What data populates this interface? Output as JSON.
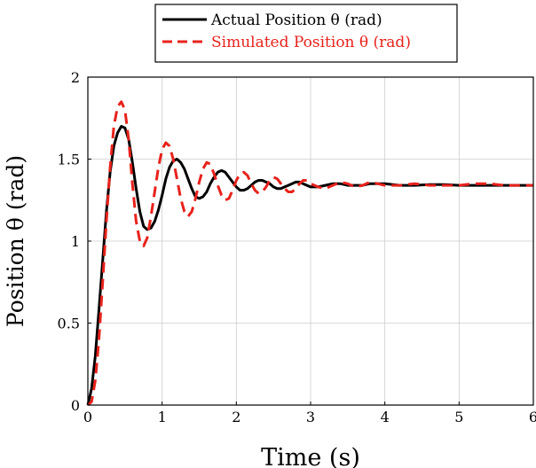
{
  "chart_data": {
    "type": "line",
    "xlabel": "Time (s)",
    "ylabel": "Position θ (rad)",
    "xlim": [
      0,
      6
    ],
    "ylim": [
      0,
      2
    ],
    "xticks": [
      "0",
      "1",
      "2",
      "3",
      "4",
      "5",
      "6"
    ],
    "yticks": [
      "0",
      "0.5",
      "1",
      "1.5",
      "2"
    ],
    "grid": true,
    "legend_position": "top-center",
    "series": [
      {
        "name": "Actual Position  θ (rad)",
        "color": "#000000",
        "style": "solid",
        "x": [
          0,
          0.05,
          0.1,
          0.15,
          0.2,
          0.25,
          0.3,
          0.35,
          0.4,
          0.45,
          0.5,
          0.55,
          0.6,
          0.65,
          0.7,
          0.75,
          0.8,
          0.85,
          0.9,
          0.95,
          1.0,
          1.05,
          1.1,
          1.15,
          1.2,
          1.25,
          1.3,
          1.35,
          1.4,
          1.45,
          1.5,
          1.55,
          1.6,
          1.65,
          1.7,
          1.75,
          1.8,
          1.85,
          1.9,
          1.95,
          2.0,
          2.05,
          2.1,
          2.15,
          2.2,
          2.25,
          2.3,
          2.35,
          2.4,
          2.45,
          2.5,
          2.55,
          2.6,
          2.65,
          2.7,
          2.75,
          2.8,
          2.85,
          2.9,
          2.95,
          3.0,
          3.1,
          3.2,
          3.3,
          3.4,
          3.5,
          3.6,
          3.7,
          3.8,
          3.9,
          4.0,
          4.2,
          4.4,
          4.6,
          4.8,
          5.0,
          5.2,
          5.4,
          5.6,
          5.8,
          6.0
        ],
        "y": [
          0,
          0.1,
          0.3,
          0.58,
          0.88,
          1.18,
          1.42,
          1.58,
          1.66,
          1.7,
          1.69,
          1.62,
          1.48,
          1.32,
          1.18,
          1.09,
          1.07,
          1.08,
          1.12,
          1.19,
          1.28,
          1.38,
          1.45,
          1.49,
          1.5,
          1.48,
          1.44,
          1.38,
          1.32,
          1.27,
          1.26,
          1.27,
          1.3,
          1.35,
          1.39,
          1.42,
          1.43,
          1.42,
          1.39,
          1.36,
          1.33,
          1.31,
          1.31,
          1.32,
          1.34,
          1.36,
          1.37,
          1.37,
          1.36,
          1.35,
          1.33,
          1.32,
          1.32,
          1.33,
          1.34,
          1.35,
          1.36,
          1.36,
          1.35,
          1.34,
          1.33,
          1.33,
          1.34,
          1.35,
          1.35,
          1.34,
          1.34,
          1.34,
          1.35,
          1.35,
          1.35,
          1.34,
          1.34,
          1.345,
          1.345,
          1.34,
          1.34,
          1.34,
          1.34,
          1.34,
          1.34
        ]
      },
      {
        "name": "Simulated Position  θ (rad)",
        "color": "#e8221c",
        "style": "dashed",
        "x": [
          0,
          0.05,
          0.1,
          0.15,
          0.2,
          0.25,
          0.3,
          0.35,
          0.4,
          0.45,
          0.5,
          0.55,
          0.6,
          0.65,
          0.7,
          0.75,
          0.8,
          0.85,
          0.9,
          0.95,
          1.0,
          1.05,
          1.1,
          1.15,
          1.2,
          1.25,
          1.3,
          1.35,
          1.4,
          1.45,
          1.5,
          1.55,
          1.6,
          1.65,
          1.7,
          1.75,
          1.8,
          1.85,
          1.9,
          1.95,
          2.0,
          2.05,
          2.1,
          2.15,
          2.2,
          2.25,
          2.3,
          2.35,
          2.4,
          2.45,
          2.5,
          2.55,
          2.6,
          2.65,
          2.7,
          2.75,
          2.8,
          2.85,
          2.9,
          2.95,
          3.0,
          3.1,
          3.2,
          3.3,
          3.4,
          3.5,
          3.6,
          3.7,
          3.8,
          3.9,
          4.0,
          4.2,
          4.4,
          4.6,
          4.8,
          5.0,
          5.2,
          5.4,
          5.6,
          5.8,
          6.0
        ],
        "y": [
          0,
          0.02,
          0.15,
          0.4,
          0.75,
          1.12,
          1.45,
          1.7,
          1.82,
          1.85,
          1.8,
          1.62,
          1.35,
          1.12,
          1.0,
          0.97,
          1.02,
          1.15,
          1.3,
          1.45,
          1.56,
          1.6,
          1.58,
          1.5,
          1.38,
          1.26,
          1.18,
          1.15,
          1.18,
          1.26,
          1.36,
          1.44,
          1.48,
          1.47,
          1.41,
          1.34,
          1.28,
          1.25,
          1.26,
          1.31,
          1.37,
          1.41,
          1.42,
          1.4,
          1.35,
          1.31,
          1.29,
          1.3,
          1.33,
          1.37,
          1.39,
          1.38,
          1.35,
          1.32,
          1.3,
          1.3,
          1.32,
          1.35,
          1.37,
          1.37,
          1.35,
          1.33,
          1.32,
          1.34,
          1.36,
          1.35,
          1.33,
          1.34,
          1.36,
          1.35,
          1.34,
          1.34,
          1.35,
          1.34,
          1.34,
          1.34,
          1.35,
          1.35,
          1.34,
          1.34,
          1.34
        ]
      }
    ]
  }
}
